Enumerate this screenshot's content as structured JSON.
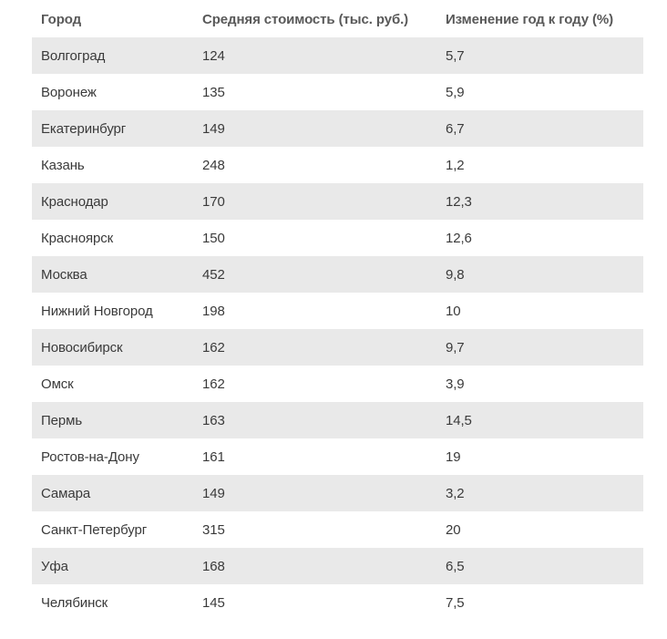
{
  "colors": {
    "page_background": "#ffffff",
    "row_alt_background": "#e9e9e9",
    "body_text": "#3a3a3a",
    "header_text": "#595959"
  },
  "table": {
    "columns": [
      {
        "key": "city",
        "label": "Город"
      },
      {
        "key": "price",
        "label": "Средняя стоимость (тыс. руб.)"
      },
      {
        "key": "change",
        "label": "Изменение год к году (%)"
      }
    ],
    "rows": [
      {
        "city": "Волгоград",
        "price": "124",
        "change": "5,7"
      },
      {
        "city": "Воронеж",
        "price": "135",
        "change": "5,9"
      },
      {
        "city": "Екатеринбург",
        "price": "149",
        "change": "6,7"
      },
      {
        "city": "Казань",
        "price": "248",
        "change": "1,2"
      },
      {
        "city": "Краснодар",
        "price": "170",
        "change": "12,3"
      },
      {
        "city": "Красноярск",
        "price": "150",
        "change": "12,6"
      },
      {
        "city": "Москва",
        "price": "452",
        "change": "9,8"
      },
      {
        "city": "Нижний Новгород",
        "price": "198",
        "change": "10"
      },
      {
        "city": "Новосибирск",
        "price": "162",
        "change": "9,7"
      },
      {
        "city": "Омск",
        "price": "162",
        "change": "3,9"
      },
      {
        "city": "Пермь",
        "price": "163",
        "change": "14,5"
      },
      {
        "city": "Ростов-на-Дону",
        "price": "161",
        "change": "19"
      },
      {
        "city": "Самара",
        "price": "149",
        "change": "3,2"
      },
      {
        "city": "Санкт-Петербург",
        "price": "315",
        "change": "20"
      },
      {
        "city": "Уфа",
        "price": "168",
        "change": "6,5"
      },
      {
        "city": "Челябинск",
        "price": "145",
        "change": "7,5"
      }
    ]
  },
  "chart_data": {
    "type": "table",
    "title": "",
    "columns": [
      "Город",
      "Средняя стоимость (тыс. руб.)",
      "Изменение год к году (%)"
    ],
    "categories": [
      "Волгоград",
      "Воронеж",
      "Екатеринбург",
      "Казань",
      "Краснодар",
      "Красноярск",
      "Москва",
      "Нижний Новгород",
      "Новосибирск",
      "Омск",
      "Пермь",
      "Ростов-на-Дону",
      "Самара",
      "Санкт-Петербург",
      "Уфа",
      "Челябинск"
    ],
    "series": [
      {
        "name": "Средняя стоимость (тыс. руб.)",
        "values": [
          124,
          135,
          149,
          248,
          170,
          150,
          452,
          198,
          162,
          162,
          163,
          161,
          149,
          315,
          168,
          145
        ]
      },
      {
        "name": "Изменение год к году (%)",
        "values": [
          5.7,
          5.9,
          6.7,
          1.2,
          12.3,
          12.6,
          9.8,
          10,
          9.7,
          3.9,
          14.5,
          19,
          3.2,
          20,
          6.5,
          7.5
        ]
      }
    ],
    "layout_hints": {
      "striped_rows": true,
      "stripe_starts_on_first_data_row": true,
      "grid": false,
      "legend_position": "none"
    }
  }
}
